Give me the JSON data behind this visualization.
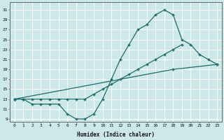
{
  "xlabel": "Humidex (Indice chaleur)",
  "ylabel": "",
  "bg_color": "#cce8e8",
  "grid_color": "#ffffff",
  "line_color": "#1e6b6b",
  "xlim": [
    -0.5,
    23.5
  ],
  "ylim": [
    8.5,
    32.5
  ],
  "xticks": [
    0,
    1,
    2,
    3,
    4,
    5,
    6,
    7,
    8,
    9,
    10,
    11,
    12,
    13,
    14,
    15,
    16,
    17,
    18,
    19,
    20,
    21,
    22,
    23
  ],
  "yticks": [
    9,
    11,
    13,
    15,
    17,
    19,
    21,
    23,
    25,
    27,
    29,
    31
  ],
  "line1_y": [
    13,
    13,
    12,
    12,
    12,
    12,
    10,
    9,
    9,
    10,
    13,
    17,
    21,
    24,
    27,
    28,
    30,
    31,
    30,
    25,
    24,
    22,
    21,
    20
  ],
  "line2_y": [
    13,
    13,
    13,
    13,
    13,
    13,
    13,
    13,
    13,
    14,
    15,
    16,
    17,
    18,
    19,
    20,
    21,
    22,
    23,
    24,
    null,
    null,
    null,
    null
  ],
  "line3_y": [
    13,
    null,
    null,
    null,
    null,
    null,
    null,
    null,
    null,
    null,
    null,
    null,
    null,
    null,
    null,
    null,
    null,
    null,
    19,
    null,
    null,
    null,
    null,
    20
  ]
}
